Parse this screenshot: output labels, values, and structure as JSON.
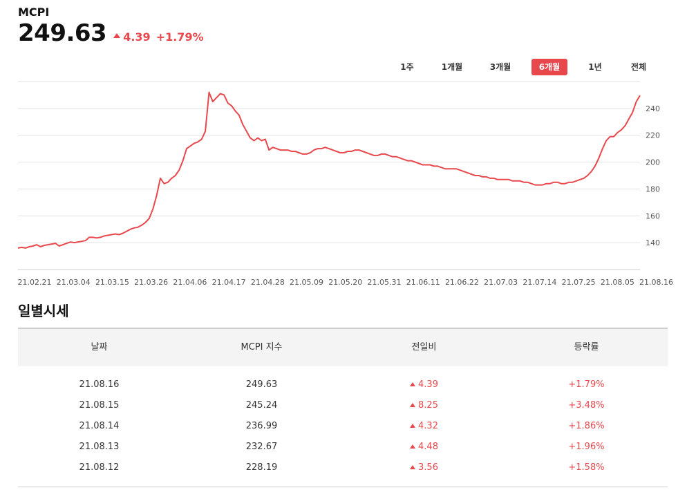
{
  "header": {
    "title": "MCPI",
    "price": "249.63",
    "change": "4.39",
    "change_rate": "+1.79%"
  },
  "periods": [
    {
      "label": "1주",
      "active": false
    },
    {
      "label": "1개월",
      "active": false
    },
    {
      "label": "3개월",
      "active": false
    },
    {
      "label": "6개월",
      "active": true
    },
    {
      "label": "1년",
      "active": false
    },
    {
      "label": "전체",
      "active": false
    }
  ],
  "colors": {
    "accent": "#e8474c",
    "grid": "#e2e2e2",
    "axis_text": "#555555"
  },
  "chart_data": {
    "type": "line",
    "ylim": [
      120,
      260
    ],
    "yticks": [
      140,
      160,
      180,
      200,
      220,
      240
    ],
    "xticks": [
      "21.02.21",
      "21.03.04",
      "21.03.15",
      "21.03.26",
      "21.04.06",
      "21.04.17",
      "21.04.28",
      "21.05.09",
      "21.05.20",
      "21.05.31",
      "21.06.11",
      "21.06.22",
      "21.07.03",
      "21.07.14",
      "21.07.25",
      "21.08.05",
      "21.08.16"
    ],
    "grid": true,
    "series": [
      {
        "values": [
          136,
          136.5,
          136,
          137,
          137.5,
          138.5,
          137,
          138,
          138.5,
          139,
          139.5,
          137.5,
          138.5,
          139.5,
          140.5,
          140,
          140.5,
          141,
          141.5,
          144,
          144,
          143.5,
          144,
          145,
          145.5,
          146,
          146.5,
          146,
          147,
          148.5,
          150,
          151,
          151.5,
          153,
          155,
          158,
          165,
          175,
          188,
          184,
          185,
          188,
          190,
          194,
          201,
          210,
          212,
          214,
          215,
          217,
          223,
          252,
          245,
          248,
          251,
          250,
          244,
          242,
          238,
          235,
          228,
          223,
          218,
          216,
          218,
          216,
          217,
          209,
          211,
          210,
          209,
          209,
          209,
          208,
          208,
          207,
          206,
          206,
          207,
          209,
          210,
          210,
          211,
          210,
          209,
          208,
          207,
          207,
          208,
          208,
          209,
          209,
          208,
          207,
          206,
          205,
          205,
          206,
          206,
          205,
          204,
          204,
          203,
          202,
          201,
          201,
          200,
          199,
          198,
          198,
          198,
          197,
          197,
          196,
          195,
          195,
          195,
          195,
          194,
          193,
          192,
          191,
          190,
          190,
          189,
          189,
          188,
          188,
          187,
          187,
          187,
          187,
          186,
          186,
          186,
          185,
          185,
          184,
          183,
          183,
          183,
          184,
          184,
          185,
          185,
          184,
          184,
          185,
          185,
          186,
          187,
          188,
          190,
          193,
          197,
          203,
          210,
          216,
          219,
          219,
          222,
          224,
          227,
          232,
          237,
          245,
          249.63
        ]
      }
    ]
  },
  "section_title": "일별시세",
  "table": {
    "headers": [
      "날짜",
      "MCPI 지수",
      "전일비",
      "등락률"
    ],
    "rows": [
      {
        "date": "21.08.16",
        "index": "249.63",
        "diff": "4.39",
        "rate": "+1.79%"
      },
      {
        "date": "21.08.15",
        "index": "245.24",
        "diff": "8.25",
        "rate": "+3.48%"
      },
      {
        "date": "21.08.14",
        "index": "236.99",
        "diff": "4.32",
        "rate": "+1.86%"
      },
      {
        "date": "21.08.13",
        "index": "232.67",
        "diff": "4.48",
        "rate": "+1.96%"
      },
      {
        "date": "21.08.12",
        "index": "228.19",
        "diff": "3.56",
        "rate": "+1.58%"
      }
    ]
  }
}
